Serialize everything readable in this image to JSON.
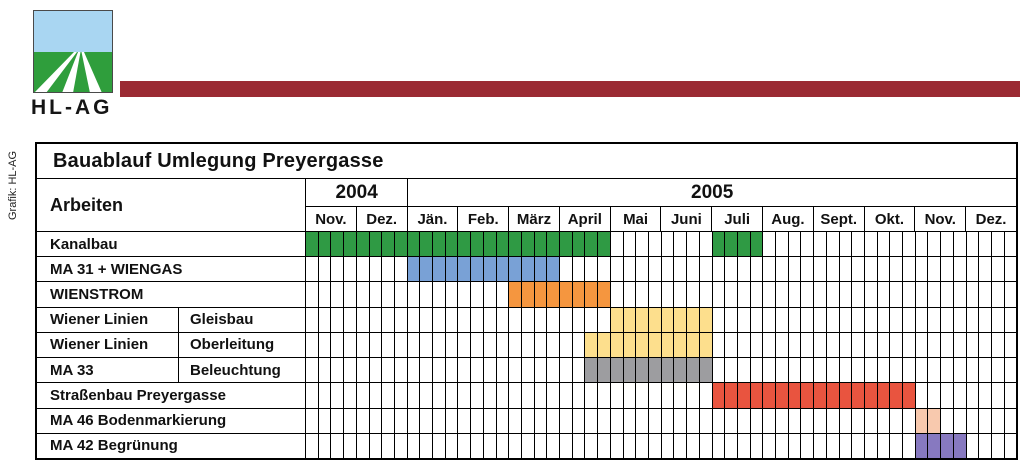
{
  "branding": {
    "company": "HL-AG",
    "credit": "Grafik: HL-AG",
    "bar_color": "#9b2a33",
    "logo": {
      "icon": "field-with-converging-tracks",
      "sky_color": "#a9d6f2",
      "field_color": "#2f9e3c",
      "border_color": "#4a4a4a"
    }
  },
  "chart_data": {
    "type": "bar",
    "subtype": "gantt",
    "title": "Bauablauf Umlegung Preyergasse",
    "left_header": "Arbeiten",
    "time_span": "Nov. 2004 – Dez. 2005",
    "weeks_per_month": 4,
    "grid": "weekly cells, black 1px lines",
    "legend_position": "none",
    "years": [
      {
        "label": "2004",
        "months": [
          "Nov.",
          "Dez."
        ]
      },
      {
        "label": "2005",
        "months": [
          "Jän.",
          "Feb.",
          "März",
          "April",
          "Mai",
          "Juni",
          "Juli",
          "Aug.",
          "Sept.",
          "Okt.",
          "Nov.",
          "Dez."
        ]
      }
    ],
    "tasks": [
      {
        "label": "Kanalbau",
        "sublabel": null,
        "color": "#2f9a44",
        "color_name": "green",
        "period": "Nov. 2004 – April 2005 und Juli 2005",
        "segments": [
          {
            "from_week": 0,
            "to_week": 24
          },
          {
            "from_week": 32,
            "to_week": 36
          }
        ]
      },
      {
        "label": "MA 31 + WIENGAS",
        "sublabel": null,
        "color": "#79a1d6",
        "color_name": "blue",
        "period": "Jän. 2005 – März 2005",
        "segments": [
          {
            "from_week": 8,
            "to_week": 20
          }
        ]
      },
      {
        "label": "WIENSTROM",
        "sublabel": null,
        "color": "#f5963f",
        "color_name": "orange",
        "period": "März 2005 – April 2005",
        "segments": [
          {
            "from_week": 16,
            "to_week": 24
          }
        ]
      },
      {
        "label": "Wiener Linien",
        "sublabel": "Gleisbau",
        "color": "#fddf8d",
        "color_name": "light-yellow",
        "period": "Mai 2005 – Juni 2005",
        "segments": [
          {
            "from_week": 24,
            "to_week": 32
          }
        ]
      },
      {
        "label": "Wiener Linien",
        "sublabel": "Oberleitung",
        "color": "#fddf8d",
        "color_name": "light-yellow",
        "period": "Mitte April 2005 – Juni 2005",
        "segments": [
          {
            "from_week": 22,
            "to_week": 32
          }
        ]
      },
      {
        "label": "MA 33",
        "sublabel": "Beleuchtung",
        "color": "#9d9da0",
        "color_name": "gray",
        "period": "Mitte April 2005 – Juni 2005",
        "segments": [
          {
            "from_week": 22,
            "to_week": 32
          }
        ]
      },
      {
        "label": "Straßenbau Preyergasse",
        "sublabel": null,
        "color": "#e9543f",
        "color_name": "red",
        "period": "Juli 2005 – Okt. 2005",
        "segments": [
          {
            "from_week": 32,
            "to_week": 48
          }
        ]
      },
      {
        "label": "MA 46  Bodenmarkierung",
        "sublabel": null,
        "color": "#f8c9ae",
        "color_name": "light-salmon",
        "period": "Anfang Nov. 2005 (2 Wochen)",
        "segments": [
          {
            "from_week": 48,
            "to_week": 50
          }
        ]
      },
      {
        "label": "MA 42  Begrünung",
        "sublabel": null,
        "color": "#8779c0",
        "color_name": "purple",
        "period": "Nov. 2005",
        "segments": [
          {
            "from_week": 48,
            "to_week": 52
          }
        ]
      }
    ]
  }
}
